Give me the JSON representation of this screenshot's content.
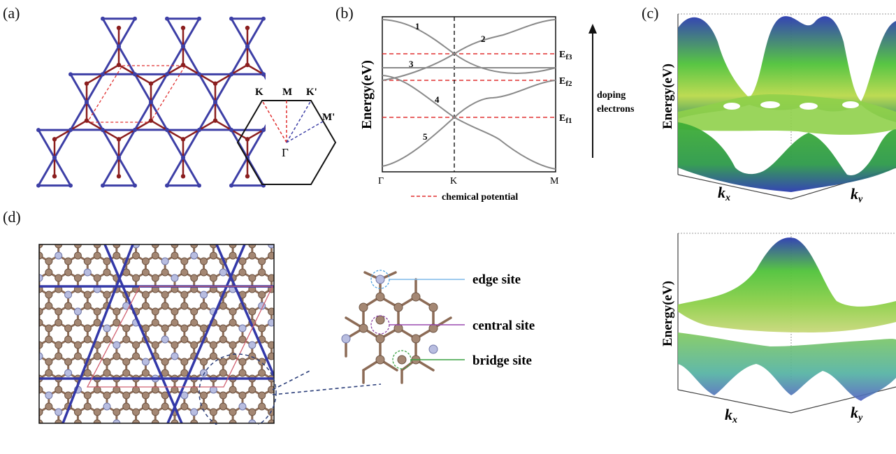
{
  "panels": {
    "a": {
      "label": "(a)"
    },
    "b": {
      "label": "(b)"
    },
    "c": {
      "label": "(c)"
    },
    "d": {
      "label": "(d)"
    }
  },
  "bz": {
    "K": "K",
    "M": "M",
    "K_prime": "K'",
    "M_prime": "M'",
    "Gamma": "Γ"
  },
  "bands": {
    "ylabel": "Energy(eV)",
    "x_ticks": [
      "Γ",
      "K",
      "M"
    ],
    "band_numbers": [
      "1",
      "2",
      "3",
      "4",
      "5"
    ],
    "fermi_levels": [
      {
        "base": "E",
        "sub": "f3"
      },
      {
        "base": "E",
        "sub": "f2"
      },
      {
        "base": "E",
        "sub": "f1"
      }
    ],
    "legend": "chemical potential",
    "doping_line1": "doping",
    "doping_line2": "electrons"
  },
  "surface_top": {
    "ylabel": "Energy(eV)",
    "kx": "k",
    "kx_sub": "x",
    "ky": "k",
    "ky_sub": "y"
  },
  "surface_bottom": {
    "ylabel": "Energy(eV)",
    "kx": "k",
    "kx_sub": "x",
    "ky": "k",
    "ky_sub": "y"
  },
  "sites": {
    "edge": "edge site",
    "central": "central site",
    "bridge": "bridge site"
  },
  "colors": {
    "kagome_blue": "#3d3fa6",
    "honeycomb_red": "#8b1e1e",
    "dashed_red": "#e03030",
    "atom_brown": "#a48773",
    "atom_light": "#b8bde0",
    "surface_green": "#5fcf3a",
    "surface_blue": "#2a3bb0"
  }
}
